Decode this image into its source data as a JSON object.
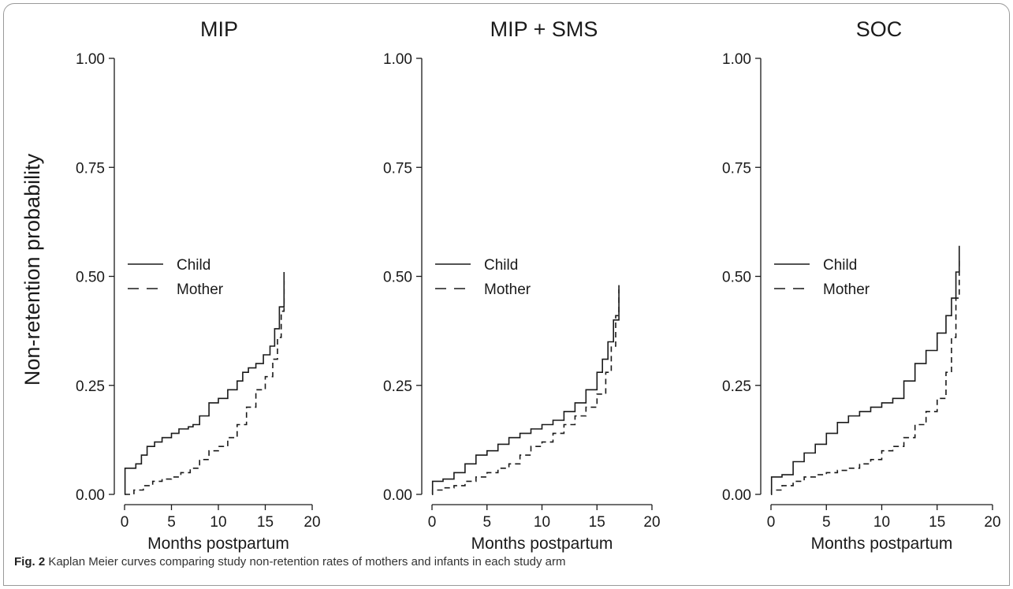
{
  "ylabel": "Non-retention probability",
  "caption": {
    "label": "Fig. 2",
    "text": " Kaplan Meier curves comparing study non-retention rates of mothers and infants in each study arm"
  },
  "chart_data": [
    {
      "type": "line",
      "title": "MIP",
      "xlabel": "Months postpartum",
      "xlim": [
        0,
        20
      ],
      "ylim": [
        0,
        1
      ],
      "xticks": [
        "0",
        "5",
        "10",
        "15",
        "20"
      ],
      "yticks": [
        "0.00",
        "0.25",
        "0.50",
        "0.75",
        "1.00"
      ],
      "legend_position": "middle-left",
      "series": [
        {
          "name": "Child",
          "dash": "solid",
          "x": [
            0,
            0.05,
            1.2,
            1.8,
            2.4,
            3.2,
            4.0,
            5.0,
            5.8,
            6.8,
            7.3,
            8.0,
            9.0,
            10.0,
            11.0,
            12.0,
            12.6,
            13.2,
            14.0,
            14.8,
            15.5,
            16.0,
            16.5,
            17.0
          ],
          "y": [
            0,
            0.06,
            0.07,
            0.09,
            0.11,
            0.12,
            0.13,
            0.14,
            0.15,
            0.155,
            0.16,
            0.18,
            0.21,
            0.22,
            0.24,
            0.26,
            0.28,
            0.29,
            0.3,
            0.32,
            0.34,
            0.38,
            0.43,
            0.51
          ]
        },
        {
          "name": "Mother",
          "dash": "dashed",
          "x": [
            0,
            0.3,
            1.0,
            2.0,
            3.0,
            4.0,
            5.0,
            6.0,
            7.0,
            8.0,
            9.0,
            10.0,
            11.0,
            12.0,
            13.0,
            14.0,
            15.0,
            15.8,
            16.3,
            16.7,
            17.0
          ],
          "y": [
            0,
            0.0,
            0.01,
            0.02,
            0.03,
            0.035,
            0.04,
            0.05,
            0.06,
            0.08,
            0.1,
            0.11,
            0.13,
            0.16,
            0.2,
            0.24,
            0.27,
            0.31,
            0.36,
            0.42,
            0.49
          ]
        }
      ]
    },
    {
      "type": "line",
      "title": "MIP + SMS",
      "xlabel": "Months postpartum",
      "xlim": [
        0,
        20
      ],
      "ylim": [
        0,
        1
      ],
      "xticks": [
        "0",
        "5",
        "10",
        "15",
        "20"
      ],
      "yticks": [
        "0.00",
        "0.25",
        "0.50",
        "0.75",
        "1.00"
      ],
      "legend_position": "middle-left",
      "series": [
        {
          "name": "Child",
          "dash": "solid",
          "x": [
            0,
            0.05,
            1.0,
            2.0,
            3.0,
            4.0,
            5.0,
            6.0,
            7.0,
            8.0,
            9.0,
            10.0,
            11.0,
            12.0,
            13.0,
            14.0,
            15.0,
            15.5,
            16.0,
            16.5,
            17.0
          ],
          "y": [
            0,
            0.03,
            0.035,
            0.05,
            0.07,
            0.09,
            0.1,
            0.115,
            0.13,
            0.14,
            0.15,
            0.16,
            0.17,
            0.19,
            0.21,
            0.24,
            0.28,
            0.31,
            0.35,
            0.4,
            0.48
          ]
        },
        {
          "name": "Mother",
          "dash": "dashed",
          "x": [
            0,
            0.05,
            1.0,
            2.0,
            3.0,
            4.0,
            5.0,
            6.0,
            7.0,
            8.0,
            9.0,
            10.0,
            11.0,
            12.0,
            13.0,
            14.0,
            15.0,
            15.8,
            16.3,
            16.7,
            17.0
          ],
          "y": [
            0,
            0.01,
            0.015,
            0.02,
            0.03,
            0.04,
            0.05,
            0.06,
            0.07,
            0.09,
            0.11,
            0.12,
            0.14,
            0.16,
            0.18,
            0.2,
            0.23,
            0.28,
            0.34,
            0.41,
            0.47
          ]
        }
      ]
    },
    {
      "type": "line",
      "title": "SOC",
      "xlabel": "Months postpartum",
      "xlim": [
        0,
        20
      ],
      "ylim": [
        0,
        1
      ],
      "xticks": [
        "0",
        "5",
        "10",
        "15",
        "20"
      ],
      "yticks": [
        "0.00",
        "0.25",
        "0.50",
        "0.75",
        "1.00"
      ],
      "legend_position": "middle-left",
      "series": [
        {
          "name": "Child",
          "dash": "solid",
          "x": [
            0,
            0.05,
            1.0,
            2.0,
            3.0,
            4.0,
            5.0,
            6.0,
            7.0,
            8.0,
            9.0,
            10.0,
            11.0,
            12.0,
            13.0,
            14.0,
            15.0,
            15.8,
            16.3,
            16.7,
            17.0
          ],
          "y": [
            0,
            0.04,
            0.045,
            0.075,
            0.095,
            0.115,
            0.14,
            0.165,
            0.18,
            0.19,
            0.2,
            0.21,
            0.22,
            0.26,
            0.3,
            0.33,
            0.37,
            0.41,
            0.45,
            0.51,
            0.57
          ]
        },
        {
          "name": "Mother",
          "dash": "dashed",
          "x": [
            0,
            0.05,
            1.0,
            2.0,
            3.0,
            4.0,
            5.0,
            6.0,
            7.0,
            8.0,
            9.0,
            10.0,
            11.0,
            12.0,
            13.0,
            14.0,
            15.0,
            15.8,
            16.3,
            16.7,
            17.0
          ],
          "y": [
            0,
            0.01,
            0.02,
            0.03,
            0.04,
            0.045,
            0.05,
            0.055,
            0.06,
            0.07,
            0.08,
            0.1,
            0.11,
            0.13,
            0.16,
            0.19,
            0.22,
            0.28,
            0.36,
            0.45,
            0.54
          ]
        }
      ]
    }
  ]
}
